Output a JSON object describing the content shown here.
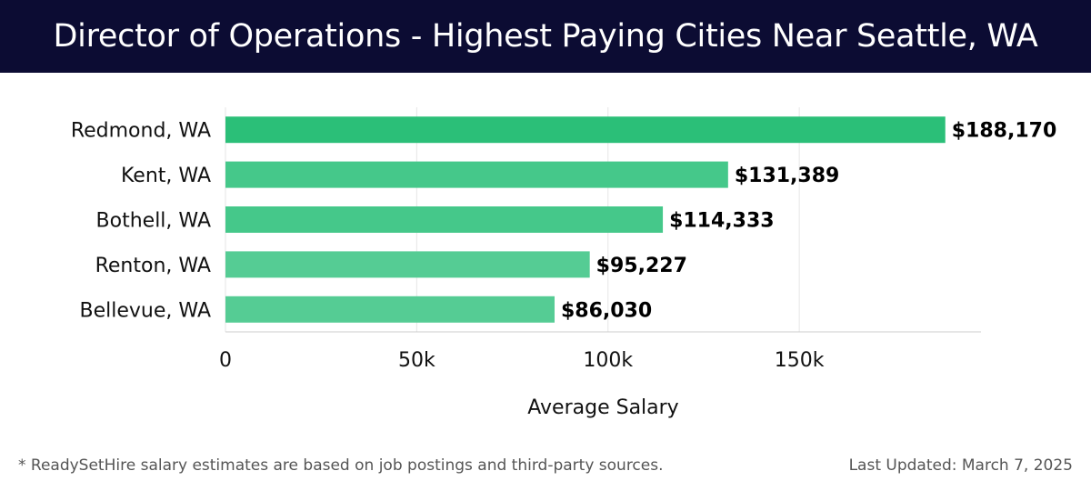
{
  "header": {
    "title": "Director of Operations - Highest Paying Cities Near Seattle, WA",
    "background": "#0c0c33"
  },
  "chart_data": {
    "type": "bar",
    "orientation": "horizontal",
    "categories": [
      "Redmond, WA",
      "Kent, WA",
      "Bothell, WA",
      "Renton, WA",
      "Bellevue, WA"
    ],
    "values": [
      188170,
      131389,
      114333,
      95227,
      86030
    ],
    "value_labels": [
      "$188,170",
      "$131,389",
      "$114,333",
      "$95,227",
      "$86,030"
    ],
    "bar_colors": [
      "#2bbf78",
      "#45c88a",
      "#45c88a",
      "#55cc94",
      "#55cc94"
    ],
    "xlabel": "Average Salary",
    "ylabel": "",
    "xlim": [
      0,
      197500
    ],
    "xticks": [
      0,
      50000,
      100000,
      150000
    ],
    "xtick_labels": [
      "0",
      "50k",
      "100k",
      "150k"
    ],
    "grid": true
  },
  "footer": {
    "footnote": "* ReadySetHire salary estimates are based on job postings and third-party sources.",
    "updated": "Last Updated: March 7, 2025"
  }
}
